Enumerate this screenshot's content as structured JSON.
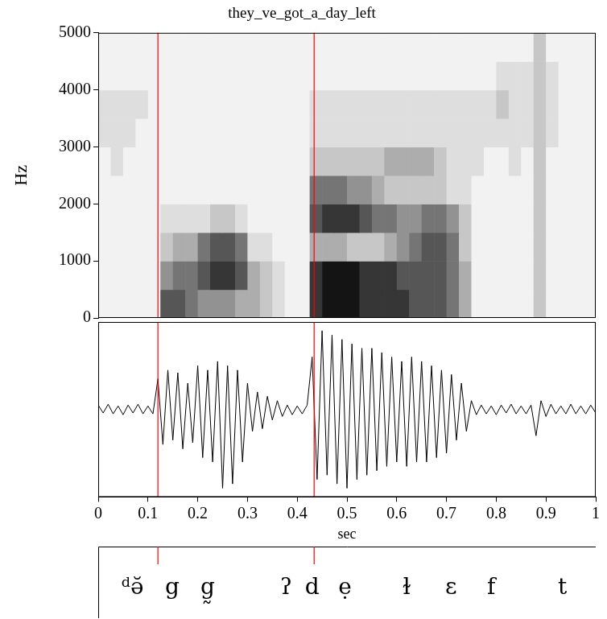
{
  "chart_data": [
    {
      "type": "heatmap",
      "title": "they_ve_got_a_day_left",
      "y_label": "Hz",
      "xlim": [
        0,
        1
      ],
      "ylim": [
        0,
        5000
      ],
      "yticks": [
        0,
        1000,
        2000,
        3000,
        4000,
        5000
      ],
      "grid": false,
      "tick_labels": "y",
      "x_bins": [
        0,
        0.025,
        0.05,
        0.075,
        0.1,
        0.125,
        0.15,
        0.175,
        0.2,
        0.225,
        0.25,
        0.275,
        0.3,
        0.325,
        0.35,
        0.375,
        0.4,
        0.425,
        0.45,
        0.475,
        0.5,
        0.525,
        0.55,
        0.575,
        0.6,
        0.625,
        0.65,
        0.675,
        0.7,
        0.725,
        0.75,
        0.775,
        0.8,
        0.825,
        0.85,
        0.875,
        0.9,
        0.925,
        0.95,
        0.975,
        1
      ],
      "y_bins": [
        0,
        500,
        1000,
        1500,
        2000,
        2500,
        3000,
        3500,
        4000,
        4500,
        5000
      ],
      "cells": [
        [
          1,
          1,
          1,
          1,
          1,
          7,
          7,
          6,
          5,
          5,
          5,
          4,
          4,
          3,
          2,
          1,
          1,
          8,
          9,
          9,
          9,
          8,
          8,
          8,
          8,
          7,
          7,
          7,
          6,
          4,
          1,
          1,
          1,
          1,
          1,
          3,
          1,
          1,
          1,
          1
        ],
        [
          1,
          1,
          1,
          1,
          1,
          5,
          6,
          6,
          7,
          8,
          8,
          7,
          4,
          3,
          2,
          1,
          1,
          8,
          9,
          9,
          9,
          8,
          8,
          8,
          7,
          7,
          7,
          7,
          6,
          4,
          1,
          1,
          1,
          1,
          1,
          3,
          1,
          1,
          1,
          1
        ],
        [
          1,
          1,
          1,
          1,
          1,
          3,
          4,
          4,
          6,
          7,
          7,
          6,
          2,
          2,
          1,
          1,
          1,
          4,
          4,
          4,
          3,
          3,
          3,
          4,
          5,
          6,
          7,
          7,
          6,
          3,
          1,
          1,
          1,
          1,
          1,
          3,
          1,
          1,
          1,
          1
        ],
        [
          1,
          1,
          1,
          1,
          1,
          2,
          2,
          2,
          2,
          3,
          3,
          2,
          1,
          1,
          1,
          1,
          1,
          7,
          8,
          8,
          8,
          7,
          6,
          6,
          5,
          5,
          6,
          6,
          5,
          3,
          1,
          1,
          1,
          1,
          1,
          3,
          1,
          1,
          1,
          1
        ],
        [
          1,
          1,
          1,
          1,
          1,
          1,
          1,
          1,
          1,
          1,
          1,
          1,
          1,
          1,
          1,
          1,
          1,
          6,
          6,
          6,
          5,
          5,
          4,
          3,
          3,
          3,
          3,
          3,
          2,
          2,
          1,
          1,
          1,
          1,
          1,
          3,
          1,
          1,
          1,
          1
        ],
        [
          1,
          2,
          1,
          1,
          1,
          1,
          1,
          1,
          1,
          1,
          1,
          1,
          1,
          1,
          1,
          1,
          1,
          3,
          3,
          3,
          3,
          3,
          3,
          4,
          4,
          4,
          4,
          3,
          2,
          2,
          2,
          1,
          1,
          2,
          1,
          3,
          1,
          1,
          1,
          1
        ],
        [
          2,
          2,
          2,
          1,
          1,
          1,
          1,
          1,
          1,
          1,
          1,
          1,
          1,
          1,
          1,
          1,
          1,
          2,
          2,
          2,
          2,
          2,
          2,
          2,
          2,
          2,
          2,
          2,
          2,
          2,
          2,
          2,
          2,
          2,
          2,
          3,
          2,
          1,
          1,
          1
        ],
        [
          2,
          2,
          2,
          2,
          1,
          1,
          1,
          1,
          1,
          1,
          1,
          1,
          1,
          1,
          1,
          1,
          1,
          2,
          2,
          2,
          2,
          2,
          2,
          2,
          2,
          2,
          2,
          2,
          2,
          2,
          2,
          2,
          3,
          2,
          2,
          3,
          2,
          1,
          1,
          1
        ],
        [
          1,
          1,
          1,
          1,
          1,
          1,
          1,
          1,
          1,
          1,
          1,
          1,
          1,
          1,
          1,
          1,
          1,
          1,
          1,
          1,
          1,
          1,
          1,
          1,
          1,
          1,
          1,
          1,
          1,
          1,
          1,
          1,
          2,
          2,
          2,
          3,
          2,
          1,
          1,
          1
        ],
        [
          1,
          1,
          1,
          1,
          1,
          1,
          1,
          1,
          1,
          1,
          1,
          1,
          1,
          1,
          1,
          1,
          1,
          1,
          1,
          1,
          1,
          1,
          1,
          1,
          1,
          1,
          1,
          1,
          1,
          1,
          1,
          1,
          1,
          1,
          1,
          3,
          1,
          1,
          1,
          1
        ]
      ]
    },
    {
      "type": "line",
      "x_label": "sec",
      "xlim": [
        0,
        1
      ],
      "xticks": [
        0,
        0.1,
        0.2,
        0.3,
        0.4,
        0.5,
        0.6,
        0.7,
        0.8,
        0.9,
        1
      ],
      "ylim": [
        -1,
        1
      ],
      "grid": false,
      "tick_labels": "x",
      "color": "#000000",
      "x": [
        0,
        0.01,
        0.02,
        0.03,
        0.04,
        0.05,
        0.06,
        0.07,
        0.08,
        0.09,
        0.1,
        0.11,
        0.12,
        0.13,
        0.14,
        0.15,
        0.16,
        0.17,
        0.18,
        0.19,
        0.2,
        0.21,
        0.22,
        0.23,
        0.24,
        0.25,
        0.26,
        0.27,
        0.28,
        0.29,
        0.3,
        0.31,
        0.32,
        0.33,
        0.34,
        0.35,
        0.36,
        0.37,
        0.38,
        0.39,
        0.4,
        0.41,
        0.42,
        0.43,
        0.44,
        0.45,
        0.46,
        0.47,
        0.48,
        0.49,
        0.5,
        0.51,
        0.52,
        0.53,
        0.54,
        0.55,
        0.56,
        0.57,
        0.58,
        0.59,
        0.6,
        0.61,
        0.62,
        0.63,
        0.64,
        0.65,
        0.66,
        0.67,
        0.68,
        0.69,
        0.7,
        0.71,
        0.72,
        0.73,
        0.74,
        0.75,
        0.76,
        0.77,
        0.78,
        0.79,
        0.8,
        0.81,
        0.82,
        0.83,
        0.84,
        0.85,
        0.86,
        0.87,
        0.88,
        0.89,
        0.9,
        0.91,
        0.92,
        0.93,
        0.94,
        0.95,
        0.96,
        0.97,
        0.98,
        0.99,
        1
      ],
      "values": [
        0.05,
        -0.04,
        0.06,
        -0.05,
        0.04,
        -0.06,
        0.05,
        -0.04,
        0.06,
        -0.05,
        0.04,
        -0.05,
        0.35,
        -0.4,
        0.45,
        -0.35,
        0.42,
        -0.45,
        0.3,
        -0.38,
        0.5,
        -0.55,
        0.45,
        -0.6,
        0.55,
        -0.9,
        0.5,
        -0.85,
        0.45,
        -0.6,
        0.3,
        -0.25,
        0.2,
        -0.22,
        0.15,
        -0.12,
        0.1,
        -0.08,
        0.05,
        -0.06,
        0.04,
        -0.05,
        0.05,
        0.6,
        -0.8,
        0.9,
        -0.75,
        0.85,
        -0.85,
        0.8,
        -0.9,
        0.75,
        -0.8,
        0.7,
        -0.75,
        0.7,
        -0.7,
        0.65,
        -0.65,
        0.6,
        -0.6,
        0.55,
        -0.65,
        0.6,
        -0.6,
        0.55,
        -0.6,
        0.5,
        -0.55,
        0.45,
        -0.5,
        0.4,
        -0.35,
        0.3,
        -0.25,
        0.1,
        -0.06,
        0.05,
        -0.05,
        0.04,
        -0.06,
        0.05,
        -0.04,
        0.06,
        -0.05,
        0.04,
        -0.05,
        0.05,
        -0.3,
        0.1,
        -0.08,
        0.06,
        -0.05,
        0.04,
        -0.05,
        0.06,
        -0.05,
        0.04,
        -0.05,
        0.05,
        -0.04
      ]
    }
  ],
  "transcription": {
    "boundaries": [
      0.12,
      0.434
    ],
    "segments": [
      {
        "x": 0.069,
        "label": "ᵈə̆"
      },
      {
        "x": 0.149,
        "label": "g"
      },
      {
        "x": 0.22,
        "label": "g̰"
      },
      {
        "x": 0.378,
        "label": "ʔ"
      },
      {
        "x": 0.43,
        "label": "d"
      },
      {
        "x": 0.496,
        "label": "ẹ"
      },
      {
        "x": 0.62,
        "label": "ɫ"
      },
      {
        "x": 0.709,
        "label": "ɛ"
      },
      {
        "x": 0.79,
        "label": "f"
      },
      {
        "x": 0.933,
        "label": "t"
      }
    ]
  }
}
